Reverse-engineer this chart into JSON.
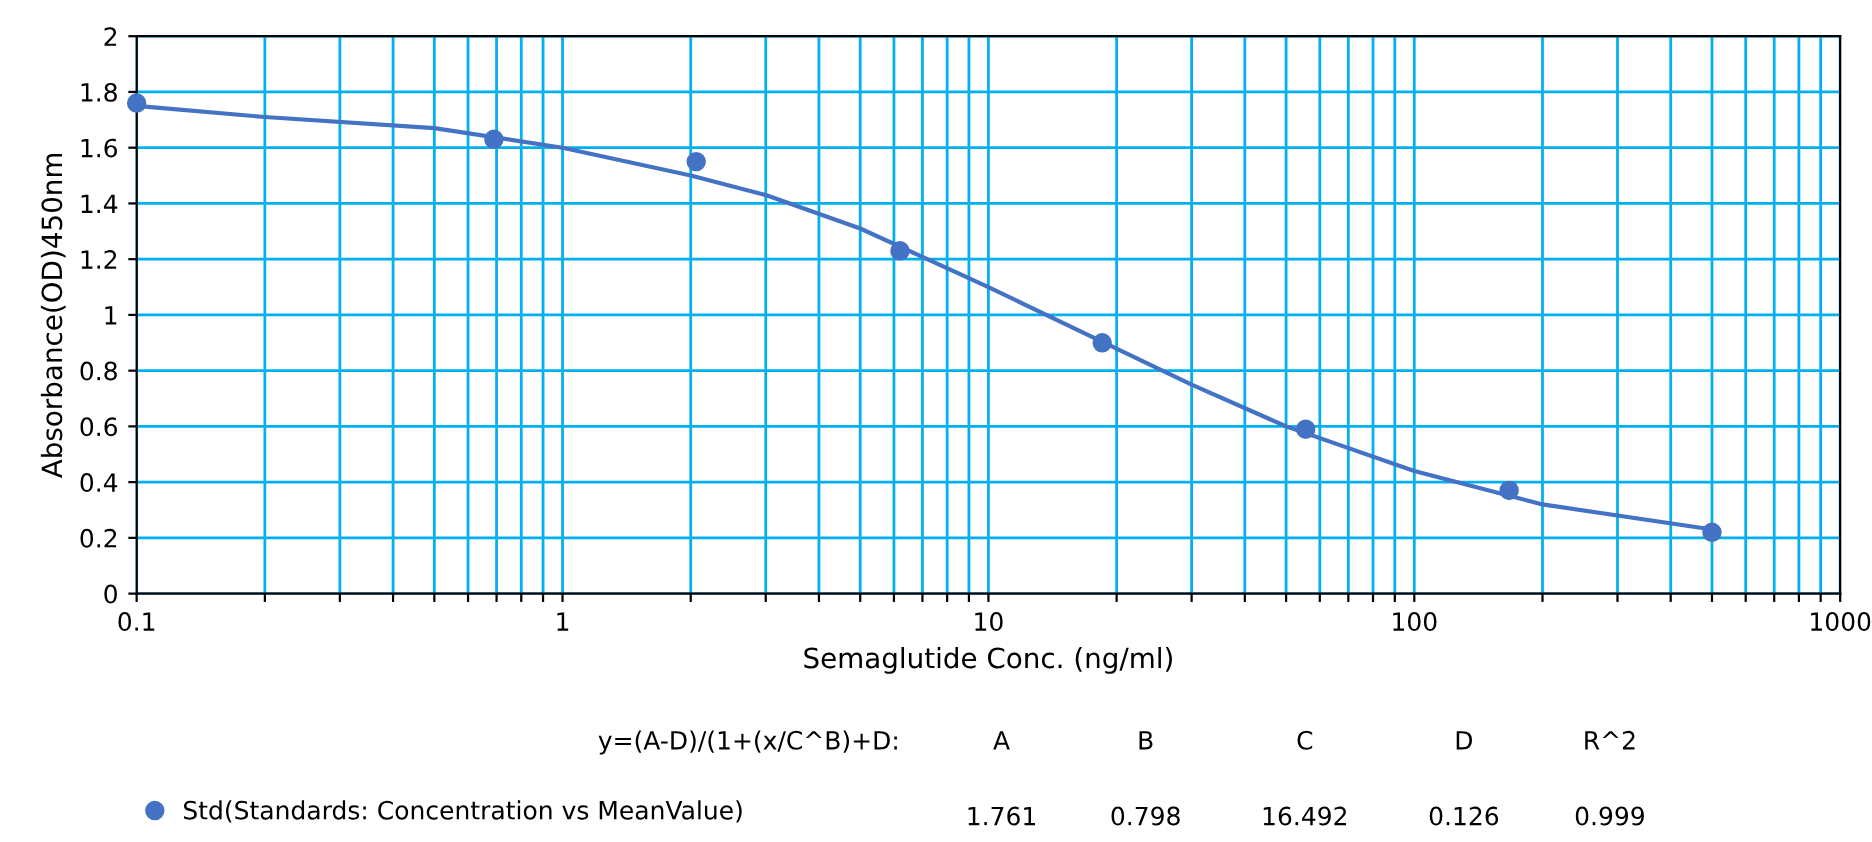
{
  "chart_data": {
    "type": "scatter",
    "xlabel": "Semaglutide Conc. (ng/ml)",
    "ylabel": "Absorbance(OD)450nm",
    "log": "x",
    "xlim": [
      0.1,
      1000
    ],
    "ylim": [
      0,
      2
    ],
    "xticks": [
      0.1,
      {
        "value": 0.2,
        "label": null
      },
      {
        "value": 0.3,
        "label": null
      },
      {
        "value": 0.4,
        "label": null
      },
      {
        "value": 0.5,
        "label": null
      },
      {
        "value": 0.6,
        "label": null
      },
      {
        "value": 0.7,
        "label": null
      },
      {
        "value": 0.8,
        "label": null
      },
      {
        "value": 0.9,
        "label": null
      },
      1,
      {
        "value": 2,
        "label": null
      },
      {
        "value": 3,
        "label": null
      },
      {
        "value": 4,
        "label": null
      },
      {
        "value": 5,
        "label": null
      },
      {
        "value": 6,
        "label": null
      },
      {
        "value": 7,
        "label": null
      },
      {
        "value": 8,
        "label": null
      },
      {
        "value": 9,
        "label": null
      },
      10,
      {
        "value": 20,
        "label": null
      },
      {
        "value": 30,
        "label": null
      },
      {
        "value": 40,
        "label": null
      },
      {
        "value": 50,
        "label": null
      },
      {
        "value": 60,
        "label": null
      },
      {
        "value": 70,
        "label": null
      },
      {
        "value": 80,
        "label": null
      },
      {
        "value": 90,
        "label": null
      },
      100,
      {
        "value": 200,
        "label": null
      },
      {
        "value": 300,
        "label": null
      },
      {
        "value": 400,
        "label": null
      },
      {
        "value": 500,
        "label": null
      },
      {
        "value": 600,
        "label": null
      },
      {
        "value": 700,
        "label": null
      },
      {
        "value": 800,
        "label": null
      },
      {
        "value": 900,
        "label": null
      },
      1000
    ],
    "yticks": [
      0,
      0.2,
      0.4,
      0.6,
      0.8,
      1,
      1.2,
      1.4,
      1.6,
      1.8,
      2
    ],
    "grid": true,
    "legend": "bottom",
    "marker": "circle",
    "series": [
      {
        "name": "Std(Standards: Concentration vs MeanValue)",
        "color": "#4472c4",
        "x": [
          0.1,
          0.69,
          2.06,
          6.2,
          18.5,
          55.6,
          167,
          500
        ],
        "values": [
          1.76,
          1.63,
          1.55,
          1.23,
          0.9,
          0.59,
          0.37,
          0.22
        ]
      },
      {
        "type": "line",
        "color": "#4472c4",
        "marker": "none",
        "x": [
          0.1,
          0.2,
          0.5,
          1,
          2,
          3,
          5,
          10,
          16.5,
          30,
          50,
          100,
          200,
          500
        ],
        "values": [
          1.75,
          1.71,
          1.67,
          1.6,
          1.5,
          1.43,
          1.31,
          1.1,
          0.94,
          0.75,
          0.6,
          0.44,
          0.32,
          0.23
        ]
      }
    ],
    "annotations": [
      "y=(A-D)/(1+(x/C^B)+D:",
      "A",
      "B",
      "C",
      "D",
      "R^2",
      "1.761",
      "0.798",
      "16.492",
      "0.126",
      "0.999"
    ]
  }
}
